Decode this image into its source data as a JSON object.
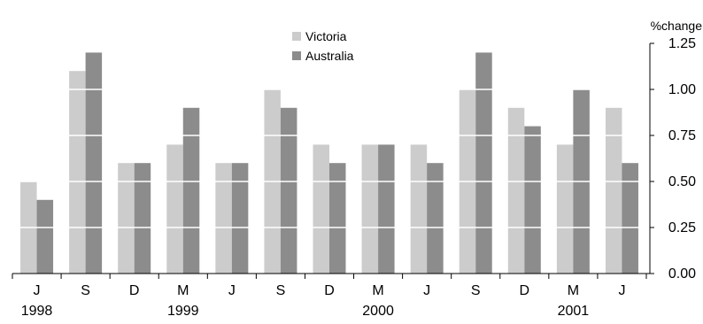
{
  "chart_data": {
    "type": "bar",
    "title": "",
    "xlabel": "",
    "ylabel": "%change",
    "ylim": [
      0,
      1.25
    ],
    "yticks": [
      "0.00",
      "0.25",
      "0.50",
      "0.75",
      "1.00",
      "1.25"
    ],
    "categories": [
      "J",
      "S",
      "D",
      "M",
      "J",
      "S",
      "D",
      "M",
      "J",
      "S",
      "D",
      "M",
      "J"
    ],
    "year_labels": [
      {
        "text": "1998",
        "category_index": 0
      },
      {
        "text": "1999",
        "category_index": 3
      },
      {
        "text": "2000",
        "category_index": 7
      },
      {
        "text": "2001",
        "category_index": 11
      }
    ],
    "series": [
      {
        "name": "Victoria",
        "color": "#cccccc",
        "values": [
          0.5,
          1.1,
          0.6,
          0.7,
          0.6,
          1.0,
          0.7,
          0.7,
          0.7,
          1.0,
          0.9,
          0.7,
          0.9
        ]
      },
      {
        "name": "Australia",
        "color": "#8c8c8c",
        "values": [
          0.4,
          1.2,
          0.6,
          0.9,
          0.6,
          0.9,
          0.6,
          0.7,
          0.6,
          1.2,
          0.8,
          1.0,
          0.6
        ]
      }
    ],
    "grid": true,
    "grid_color": "#ffffff",
    "legend_position": "top-center",
    "axis_position": "right"
  }
}
